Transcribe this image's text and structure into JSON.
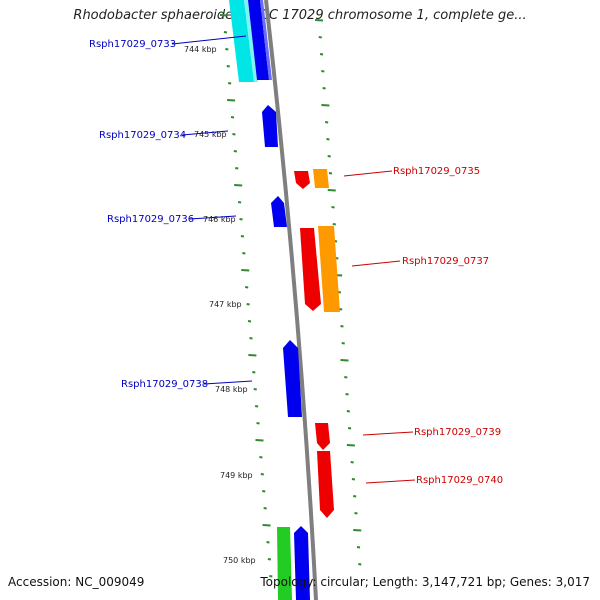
{
  "title": "Rhodobacter sphaeroides ATCC 17029 chromosome 1, complete ge...",
  "footer": {
    "accession": "Accession: NC_009049",
    "topology": "Topology: circular; Length: 3,147,721 bp; Genes: 3,017"
  },
  "scale_labels": [
    "744 kbp",
    "745 kbp",
    "746 kbp",
    "747 kbp",
    "748 kbp",
    "749 kbp",
    "750 kbp"
  ],
  "colors": {
    "backbone": "#7f7f7f",
    "ticks": "#2e8b2e",
    "left_label": "#0000c0",
    "right_label": "#cc0000",
    "blue": "#0000ee",
    "cyan": "#00e5e5",
    "red": "#ee0000",
    "orange": "#ff9900",
    "green": "#22cc22"
  },
  "genes": [
    {
      "name": "Rsph17029_0733",
      "side": "left",
      "color": "blue"
    },
    {
      "name": "Rsph17029_0734",
      "side": "left",
      "color": "blue"
    },
    {
      "name": "Rsph17029_0735",
      "side": "right",
      "color": "red"
    },
    {
      "name": "Rsph17029_0736",
      "side": "left",
      "color": "blue"
    },
    {
      "name": "Rsph17029_0737",
      "side": "right",
      "color": "red"
    },
    {
      "name": "Rsph17029_0738",
      "side": "left",
      "color": "blue"
    },
    {
      "name": "Rsph17029_0739",
      "side": "right",
      "color": "red"
    },
    {
      "name": "Rsph17029_0740",
      "side": "right",
      "color": "red"
    }
  ]
}
